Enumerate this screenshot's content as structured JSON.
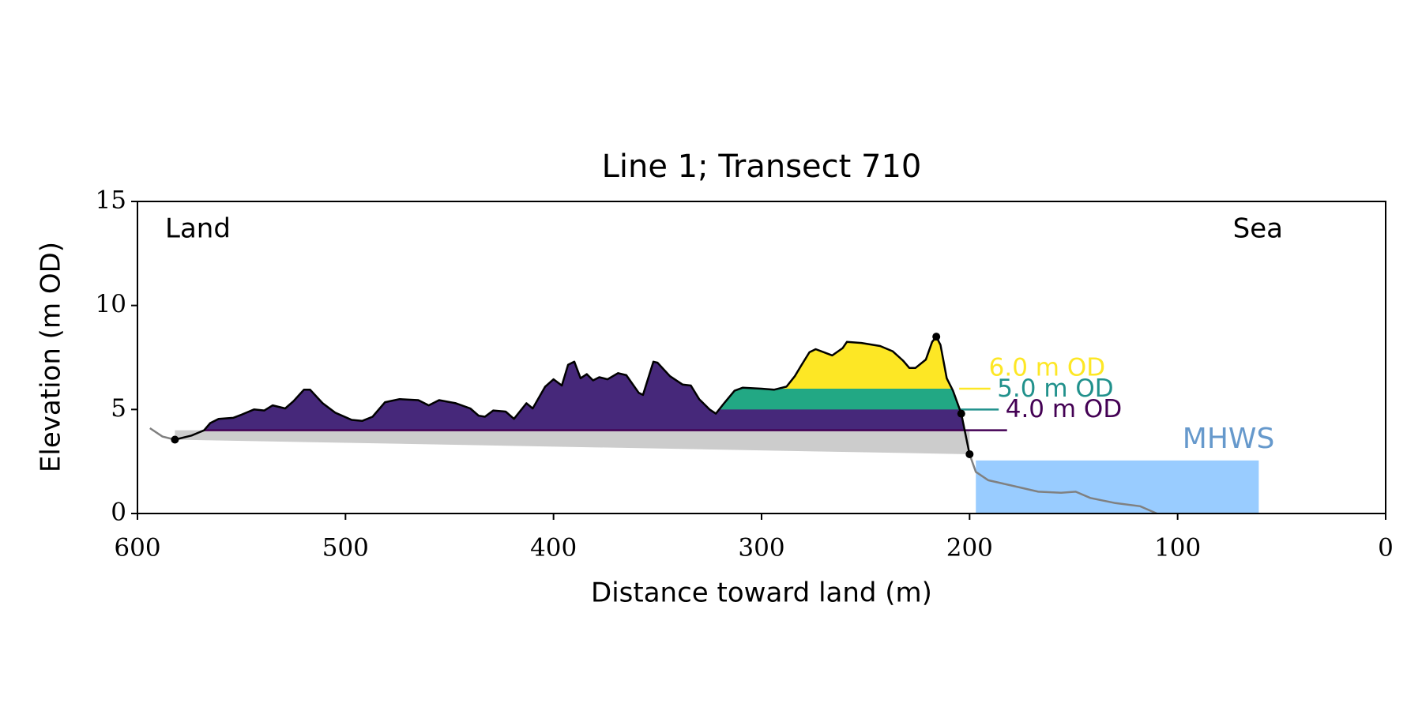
{
  "chart_data": {
    "type": "line",
    "title": "Line 1; Transect 710",
    "x_label": "Distance toward land (m)",
    "y_label": "Elevation (m OD)",
    "annotations": [
      "Land",
      "Sea"
    ],
    "xlim": [
      600,
      0
    ],
    "ylim": [
      0,
      15
    ],
    "xticks": [
      600,
      500,
      400,
      300,
      200,
      100,
      0
    ],
    "yticks": [
      0,
      5,
      10,
      15
    ],
    "profile": {
      "color": "#000000",
      "x": [
        582,
        574,
        568,
        565,
        561,
        554,
        550,
        544,
        539,
        535,
        529,
        525,
        520,
        517,
        511,
        505,
        497,
        492,
        487,
        481,
        474,
        465,
        460,
        455,
        447,
        440,
        436,
        433,
        429,
        423,
        419,
        413,
        410,
        404,
        400,
        396,
        393,
        390,
        387,
        384,
        381,
        378,
        374,
        369,
        365,
        359,
        357,
        352,
        350,
        344,
        338,
        334,
        330,
        325,
        322,
        318,
        313,
        309,
        300,
        294,
        288,
        284,
        281,
        277,
        274,
        270,
        266,
        261,
        259,
        252,
        243,
        237,
        232,
        229,
        226,
        221,
        218,
        216,
        214,
        211,
        208,
        204,
        200
      ],
      "y": [
        3.55,
        3.75,
        4.0,
        4.35,
        4.55,
        4.6,
        4.75,
        5.0,
        4.95,
        5.2,
        5.05,
        5.4,
        5.95,
        5.95,
        5.3,
        4.85,
        4.5,
        4.45,
        4.65,
        5.35,
        5.5,
        5.45,
        5.2,
        5.45,
        5.3,
        5.05,
        4.7,
        4.65,
        4.95,
        4.9,
        4.55,
        5.3,
        5.05,
        6.1,
        6.45,
        6.15,
        7.15,
        7.3,
        6.5,
        6.7,
        6.4,
        6.55,
        6.45,
        6.75,
        6.65,
        5.8,
        5.7,
        7.3,
        7.25,
        6.6,
        6.2,
        6.15,
        5.5,
        5.0,
        4.8,
        5.3,
        5.9,
        6.05,
        6.0,
        5.95,
        6.1,
        6.6,
        7.1,
        7.75,
        7.9,
        7.75,
        7.6,
        7.95,
        8.25,
        8.2,
        8.05,
        7.8,
        7.35,
        7.0,
        7.0,
        7.4,
        8.25,
        8.5,
        8.1,
        6.5,
        5.9,
        4.8,
        2.85
      ]
    },
    "extensions": [
      {
        "color": "#808080",
        "x": [
          594,
          588,
          582
        ],
        "y": [
          4.1,
          3.7,
          3.55
        ]
      },
      {
        "color": "#808080",
        "x": [
          200,
          197,
          191,
          180,
          167,
          156,
          149,
          142,
          130,
          118,
          110
        ],
        "y": [
          2.85,
          2.0,
          1.6,
          1.35,
          1.05,
          1.0,
          1.05,
          0.75,
          0.5,
          0.35,
          0.0
        ]
      }
    ],
    "markers": {
      "color": "#000000",
      "x": [
        582,
        216,
        204,
        200
      ],
      "y": [
        3.55,
        8.5,
        4.8,
        2.85
      ]
    },
    "base_line": {
      "color": "#cccccc",
      "x": [
        582,
        200
      ],
      "y": [
        3.55,
        2.85
      ]
    },
    "levels": [
      {
        "value": 4.0,
        "label": "4.0 m OD",
        "color": "#440154",
        "fill": "#46287a",
        "line_x": [
          568,
          182
        ],
        "fill_x": [
          582,
          200
        ]
      },
      {
        "value": 5.0,
        "label": "5.0 m OD",
        "color": "#21918c",
        "fill": "#22a884",
        "line_x": [
          205,
          186
        ],
        "fill_x": [
          322,
          200
        ]
      },
      {
        "value": 6.0,
        "label": "6.0 m OD",
        "color": "#fde725",
        "fill": "#fde725",
        "line_x": [
          205,
          190
        ],
        "fill_x": [
          322,
          200
        ]
      }
    ],
    "mhws": {
      "label": "MHWS",
      "value": 2.55,
      "x": [
        197,
        61
      ],
      "color": "#99ccff",
      "label_color": "#6699cc"
    }
  }
}
